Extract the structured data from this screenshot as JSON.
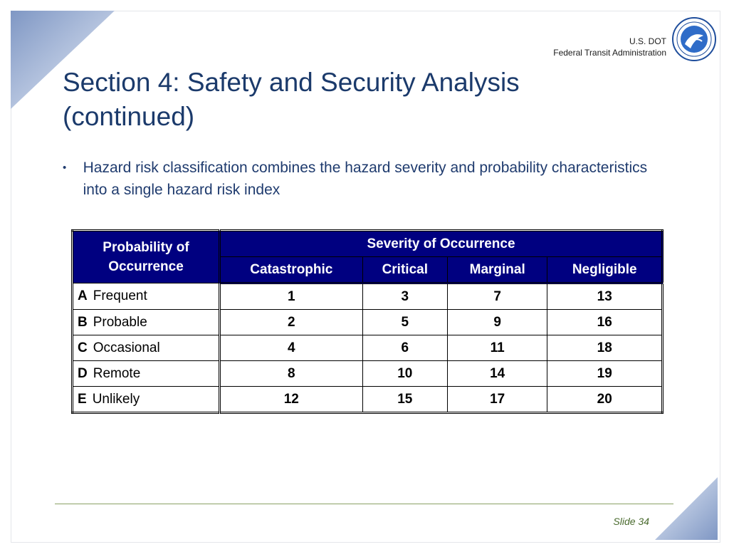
{
  "header": {
    "agency_line1": "U.S. DOT",
    "agency_line2": "Federal Transit Administration",
    "seal_icon": "dot-seal-icon"
  },
  "title_line1": "Section 4: Safety and Security Analysis",
  "title_line2": "(continued)",
  "bullet": "Hazard risk classification combines the hazard severity and probability characteristics into a single hazard risk index",
  "table": {
    "row_header": "Probability of Occurrence",
    "group_header": "Severity of Occurrence",
    "columns": [
      "Catastrophic",
      "Critical",
      "Marginal",
      "Negligible"
    ],
    "rows": [
      {
        "letter": "A",
        "label": "Frequent",
        "values": [
          "1",
          "3",
          "7",
          "13"
        ]
      },
      {
        "letter": "B",
        "label": "Probable",
        "values": [
          "2",
          "5",
          "9",
          "16"
        ]
      },
      {
        "letter": "C",
        "label": "Occasional",
        "values": [
          "4",
          "6",
          "11",
          "18"
        ]
      },
      {
        "letter": "D",
        "label": "Remote",
        "values": [
          "8",
          "10",
          "14",
          "19"
        ]
      },
      {
        "letter": "E",
        "label": "Unlikely",
        "values": [
          "12",
          "15",
          "17",
          "20"
        ]
      }
    ]
  },
  "footer": {
    "slide_label": "Slide 34"
  },
  "colors": {
    "title": "#1b3a6b",
    "header_fill": "#000080",
    "footer_line": "#8aa165"
  }
}
